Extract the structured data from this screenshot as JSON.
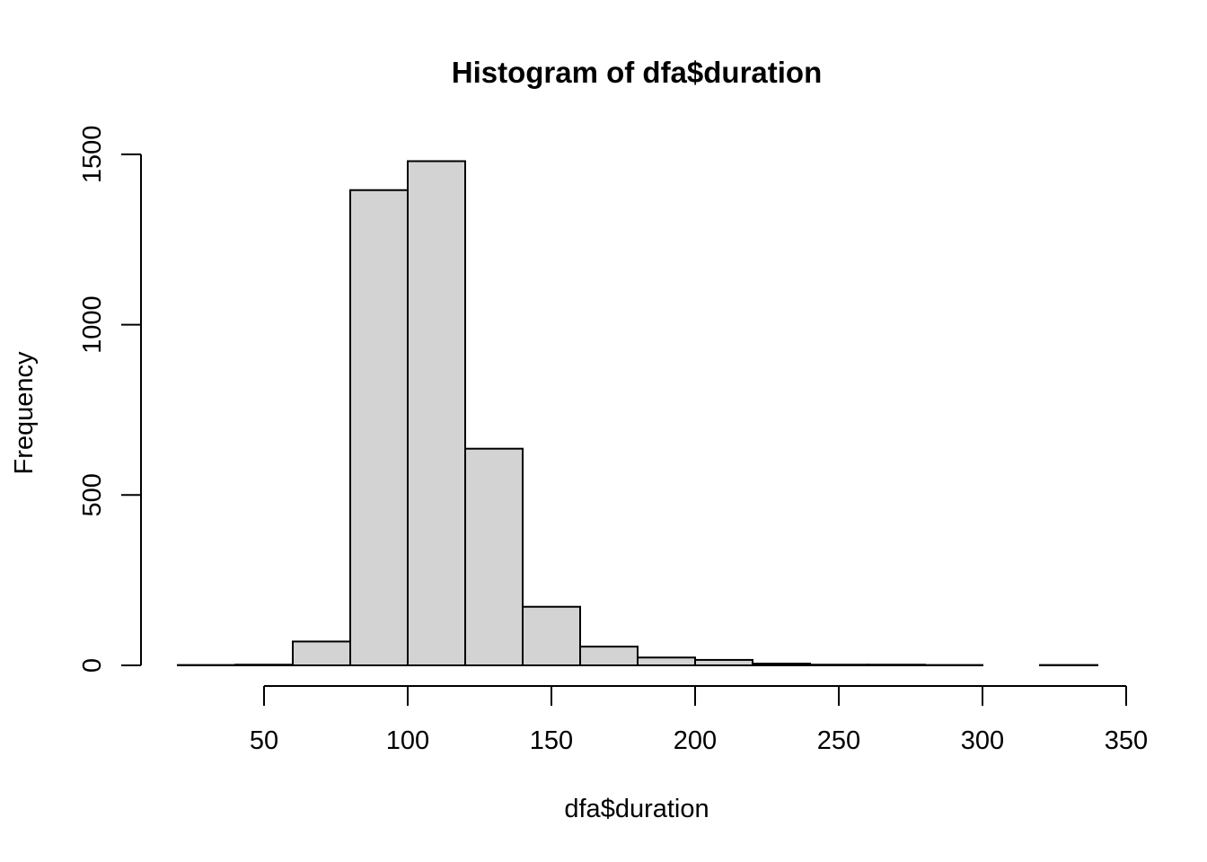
{
  "chart_data": {
    "type": "bar",
    "title": "Histogram of dfa$duration",
    "xlabel": "dfa$duration",
    "ylabel": "Frequency",
    "bin_edges": [
      20,
      40,
      60,
      80,
      100,
      120,
      140,
      160,
      180,
      200,
      220,
      240,
      260,
      280,
      300,
      320,
      340
    ],
    "values": [
      1,
      2,
      70,
      1395,
      1480,
      636,
      172,
      55,
      23,
      16,
      5,
      2,
      2,
      1,
      0,
      1
    ],
    "x_ticks": [
      50,
      100,
      150,
      200,
      250,
      300,
      350
    ],
    "y_ticks": [
      0,
      500,
      1000,
      1500
    ],
    "xlim": [
      20,
      340
    ],
    "ylim": [
      0,
      1500
    ],
    "grid": false,
    "bar_fill": "#d3d3d3",
    "bar_stroke": "#000000"
  }
}
